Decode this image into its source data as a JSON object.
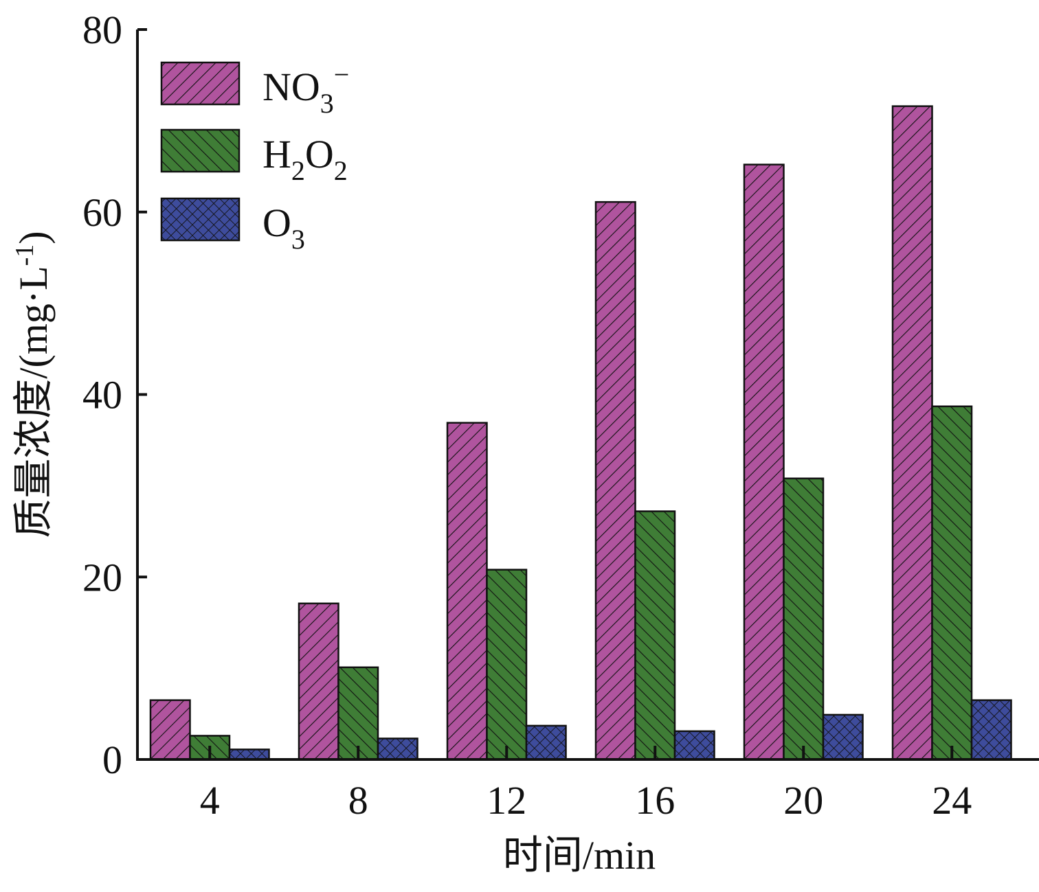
{
  "chart_data": {
    "type": "bar",
    "title": "",
    "xlabel": "时间/min",
    "ylabel": "质量浓度/(mg·L-1)",
    "ylabel_parts": {
      "main": "质量浓度/(mg·L",
      "sup": "-1",
      "end": ")"
    },
    "categories": [
      "4",
      "8",
      "12",
      "16",
      "20",
      "24"
    ],
    "ylim": [
      0,
      80
    ],
    "yticks": [
      "0",
      "20",
      "40",
      "60",
      "80"
    ],
    "grid": false,
    "legend_position": "top-left",
    "series": [
      {
        "name": "NO3−",
        "label_parts": {
          "main": "NO",
          "sub": "3",
          "sup": "−"
        },
        "color": "#b0549e",
        "pattern": "forward-hatch",
        "values": [
          6.5,
          17.1,
          36.9,
          61.1,
          65.2,
          71.6
        ]
      },
      {
        "name": "H2O2",
        "label_parts": {
          "main": "H",
          "sub": "2",
          "main2": "O",
          "sub2": "2"
        },
        "color": "#3f7d36",
        "pattern": "back-hatch",
        "values": [
          2.6,
          10.1,
          20.8,
          27.2,
          30.8,
          38.7
        ]
      },
      {
        "name": "O3",
        "label_parts": {
          "main": "O",
          "sub": "3"
        },
        "color": "#3e4c9c",
        "pattern": "crosshatch",
        "values": [
          1.1,
          2.3,
          3.7,
          3.1,
          4.9,
          6.5
        ]
      }
    ]
  }
}
